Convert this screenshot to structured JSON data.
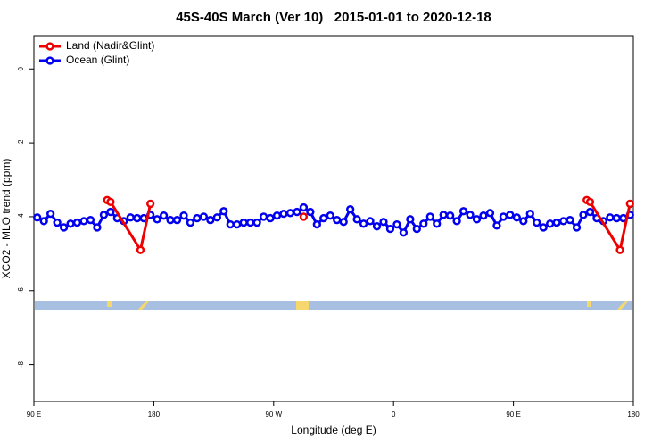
{
  "chart_data": {
    "type": "line",
    "title": "45S-40S March (Ver 10)   2015-01-01 to 2020-12-18",
    "x_label": "Longitude (deg E)",
    "y_label": "XCO2 - MLO trend (ppm)",
    "xlim": [
      90,
      540
    ],
    "xticks": [
      {
        "value": 90,
        "label": "90 E"
      },
      180,
      {
        "value": 270,
        "label": "90 W"
      },
      {
        "value": 360,
        "label": "0"
      },
      {
        "value": 450,
        "label": "90 E"
      },
      {
        "value": 540,
        "label": "180"
      }
    ],
    "ylim": [
      -9,
      0.9
    ],
    "yticks": [
      0,
      -2,
      -4,
      -6,
      -8
    ],
    "legend": "top-left",
    "series": [
      {
        "name": "Land (Nadir&Glint)",
        "color": "#ee0000",
        "x": [
          145,
          147.5,
          170,
          177.5,
          230,
          292.5,
          400,
          505,
          507.5,
          530,
          537.5
        ],
        "values": [
          -3.55,
          -3.6,
          -4.9,
          -3.65,
          null,
          -4.0,
          null,
          -3.55,
          -3.6,
          -4.9,
          -3.65
        ]
      },
      {
        "name": "Ocean (Glint)",
        "color": "#0000ee",
        "x": [
          92.5,
          97.5,
          102.5,
          107.5,
          112.5,
          117.5,
          122.5,
          127.5,
          132.5,
          137.5,
          142.5,
          147.5,
          152.5,
          157.5,
          162.5,
          167.5,
          172.5,
          177.5,
          182.5,
          187.5,
          192.5,
          197.5,
          202.5,
          207.5,
          212.5,
          217.5,
          222.5,
          227.5,
          232.5,
          237.5,
          242.5,
          247.5,
          252.5,
          257.5,
          262.5,
          267.5,
          272.5,
          277.5,
          282.5,
          287.5,
          292.5,
          297.5,
          302.5,
          307.5,
          312.5,
          317.5,
          322.5,
          327.5,
          332.5,
          337.5,
          342.5,
          347.5,
          352.5,
          357.5,
          362.5,
          367.5,
          372.5,
          377.5,
          382.5,
          387.5,
          392.5,
          397.5,
          402.5,
          407.5,
          412.5,
          417.5,
          422.5,
          427.5,
          432.5,
          437.5,
          442.5,
          447.5,
          452.5,
          457.5,
          462.5,
          467.5,
          472.5,
          477.5,
          482.5,
          487.5,
          492.5,
          497.5,
          502.5,
          507.5,
          512.5,
          517.5,
          522.5,
          527.5,
          532.5,
          537.5
        ],
        "values": [
          -4.02,
          -4.12,
          -3.92,
          -4.16,
          -4.29,
          -4.19,
          -4.16,
          -4.12,
          -4.09,
          -4.29,
          -3.95,
          -3.87,
          -4.04,
          -4.12,
          -4.02,
          -4.04,
          -4.04,
          -3.95,
          -4.07,
          -3.97,
          -4.09,
          -4.09,
          -3.97,
          -4.16,
          -4.04,
          -4.0,
          -4.09,
          -4.02,
          -3.85,
          -4.21,
          -4.21,
          -4.16,
          -4.16,
          -4.16,
          -4.0,
          -4.04,
          -3.97,
          -3.92,
          -3.9,
          -3.87,
          -3.75,
          -3.87,
          -4.21,
          -4.04,
          -3.97,
          -4.09,
          -4.14,
          -3.8,
          -4.07,
          -4.19,
          -4.12,
          -4.26,
          -4.14,
          -4.33,
          -4.21,
          -4.43,
          -4.07,
          -4.33,
          -4.19,
          -4.0,
          -4.19,
          -3.95,
          -3.97,
          -4.12,
          -3.85,
          -3.95,
          -4.07,
          -3.97,
          -3.9,
          -4.24,
          -4.0,
          -3.95,
          -4.02,
          -4.12,
          -3.92,
          -4.16,
          -4.29,
          -4.19,
          -4.16,
          -4.12,
          -4.09,
          -4.29,
          -3.95,
          -3.87,
          -4.04,
          -4.12,
          -4.02,
          -4.04,
          -4.04,
          -3.95
        ]
      }
    ]
  }
}
